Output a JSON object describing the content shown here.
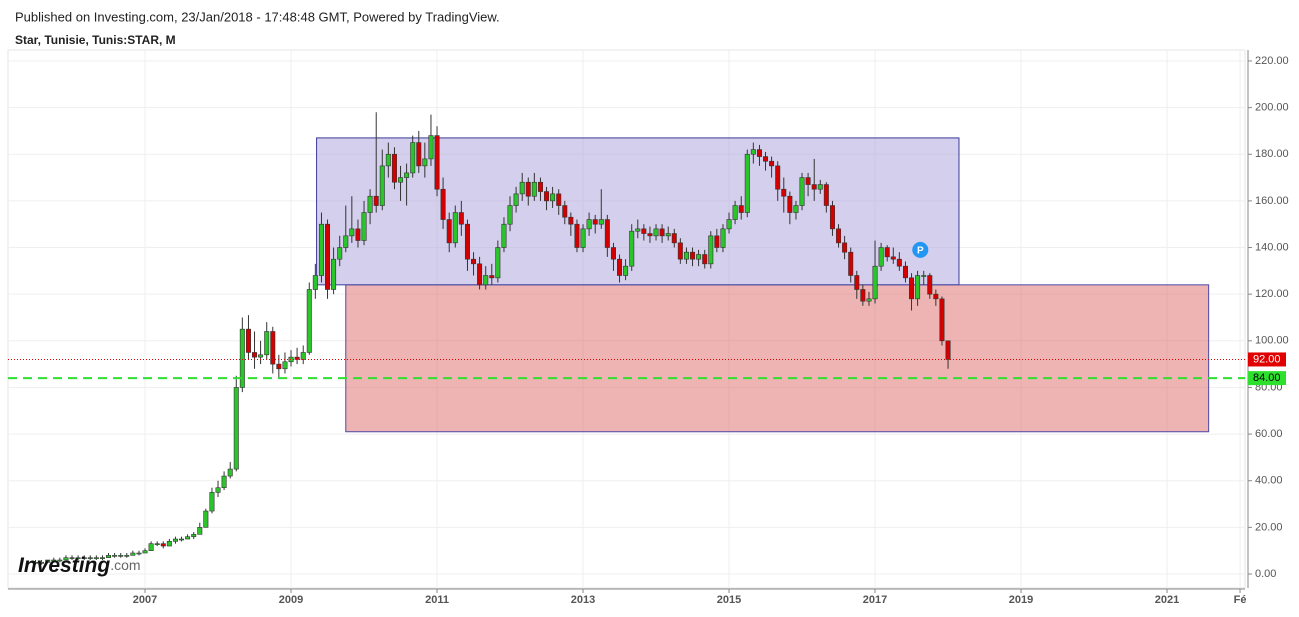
{
  "header": {
    "published": "Published on Investing.com, 23/Jan/2018 - 17:48:48 GMT, Powered by TradingView.",
    "symbol": "Star, Tunisie, Tunis:STAR, M"
  },
  "logo": {
    "brand": "Investing",
    "suffix": ".com"
  },
  "chart_data": {
    "type": "candlestick",
    "xlim": [
      2005.123,
      2022.068
    ],
    "ylim": [
      -6,
      224.7
    ],
    "xticks": [
      2007,
      2009,
      2011,
      2013,
      2015,
      2017,
      2019,
      2021,
      {
        "value": 2022,
        "label": "Fé"
      }
    ],
    "yticks": [
      {
        "value": 0,
        "label": "0.00"
      },
      {
        "value": 20,
        "label": "20.00"
      },
      {
        "value": 40,
        "label": "40.00"
      },
      {
        "value": 60,
        "label": "60.00"
      },
      {
        "value": 80,
        "label": "80.00"
      },
      {
        "value": 100,
        "label": "100.00"
      },
      {
        "value": 120,
        "label": "120.00"
      },
      {
        "value": 140,
        "label": "140.00"
      },
      {
        "value": 160,
        "label": "160.00"
      },
      {
        "value": 180,
        "label": "180.00"
      },
      {
        "value": 200,
        "label": "200.00"
      },
      {
        "value": 220,
        "label": "220.00"
      }
    ],
    "grid": true,
    "series": [
      {
        "up_color": "#2bc52b",
        "down_color": "#d40000",
        "x": [
          2005.5,
          2005.583,
          2005.667,
          2005.75,
          2005.833,
          2005.917,
          2006,
          2006.083,
          2006.167,
          2006.25,
          2006.333,
          2006.417,
          2006.5,
          2006.583,
          2006.667,
          2006.75,
          2006.833,
          2006.917,
          2007,
          2007.083,
          2007.167,
          2007.25,
          2007.333,
          2007.417,
          2007.5,
          2007.583,
          2007.667,
          2007.75,
          2007.833,
          2007.917,
          2008,
          2008.083,
          2008.167,
          2008.25,
          2008.333,
          2008.417,
          2008.5,
          2008.583,
          2008.667,
          2008.75,
          2008.833,
          2008.917,
          2009,
          2009.083,
          2009.167,
          2009.25,
          2009.333,
          2009.417,
          2009.5,
          2009.583,
          2009.667,
          2009.75,
          2009.833,
          2009.917,
          2010,
          2010.083,
          2010.167,
          2010.25,
          2010.333,
          2010.417,
          2010.5,
          2010.583,
          2010.667,
          2010.75,
          2010.833,
          2010.917,
          2011,
          2011.083,
          2011.167,
          2011.25,
          2011.333,
          2011.417,
          2011.5,
          2011.583,
          2011.667,
          2011.75,
          2011.833,
          2011.917,
          2012,
          2012.083,
          2012.167,
          2012.25,
          2012.333,
          2012.417,
          2012.5,
          2012.583,
          2012.667,
          2012.75,
          2012.833,
          2012.917,
          2013,
          2013.083,
          2013.167,
          2013.25,
          2013.333,
          2013.417,
          2013.5,
          2013.583,
          2013.667,
          2013.75,
          2013.833,
          2013.917,
          2014,
          2014.083,
          2014.167,
          2014.25,
          2014.333,
          2014.417,
          2014.5,
          2014.583,
          2014.667,
          2014.75,
          2014.833,
          2014.917,
          2015,
          2015.083,
          2015.167,
          2015.25,
          2015.333,
          2015.417,
          2015.5,
          2015.583,
          2015.667,
          2015.75,
          2015.833,
          2015.917,
          2016,
          2016.083,
          2016.167,
          2016.25,
          2016.333,
          2016.417,
          2016.5,
          2016.583,
          2016.667,
          2016.75,
          2016.833,
          2016.917,
          2017,
          2017.083,
          2017.167,
          2017.25,
          2017.333,
          2017.417,
          2017.5,
          2017.583,
          2017.667,
          2017.75,
          2017.833,
          2017.917,
          2018
        ],
        "ohlc": [
          [
            5,
            6,
            4,
            5
          ],
          [
            5,
            6,
            4,
            5
          ],
          [
            5,
            6,
            5,
            6
          ],
          [
            6,
            7,
            5,
            6
          ],
          [
            6,
            7,
            5,
            6
          ],
          [
            6,
            8,
            6,
            7
          ],
          [
            7,
            8,
            6,
            7
          ],
          [
            7,
            8,
            6,
            7
          ],
          [
            7,
            8,
            6,
            7
          ],
          [
            7,
            8,
            6,
            7
          ],
          [
            7,
            8,
            6,
            7
          ],
          [
            7,
            8,
            6,
            7
          ],
          [
            7,
            9,
            7,
            8
          ],
          [
            8,
            9,
            7,
            8
          ],
          [
            8,
            9,
            7,
            8
          ],
          [
            8,
            9,
            7,
            8
          ],
          [
            8,
            10,
            8,
            9
          ],
          [
            9,
            10,
            8,
            9
          ],
          [
            9,
            11,
            9,
            10
          ],
          [
            10,
            14,
            10,
            13
          ],
          [
            13,
            14,
            12,
            13
          ],
          [
            13,
            14,
            11,
            12
          ],
          [
            12,
            15,
            12,
            14
          ],
          [
            14,
            16,
            13,
            15
          ],
          [
            15,
            16,
            14,
            15
          ],
          [
            15,
            17,
            15,
            16
          ],
          [
            16,
            18,
            15,
            17
          ],
          [
            17,
            22,
            17,
            20
          ],
          [
            20,
            28,
            20,
            27
          ],
          [
            27,
            37,
            26,
            35
          ],
          [
            35,
            40,
            33,
            37
          ],
          [
            37,
            44,
            36,
            42
          ],
          [
            42,
            48,
            41,
            45
          ],
          [
            45,
            85,
            44,
            80
          ],
          [
            80,
            110,
            78,
            105
          ],
          [
            105,
            111,
            92,
            95
          ],
          [
            95,
            104,
            88,
            93
          ],
          [
            93,
            100,
            90,
            94
          ],
          [
            94,
            108,
            92,
            104
          ],
          [
            104,
            106,
            86,
            90
          ],
          [
            90,
            94,
            84,
            88
          ],
          [
            88,
            95,
            86,
            91
          ],
          [
            91,
            96,
            89,
            93
          ],
          [
            93,
            97,
            90,
            92
          ],
          [
            92,
            98,
            90,
            95
          ],
          [
            95,
            125,
            94,
            122
          ],
          [
            122,
            133,
            118,
            128
          ],
          [
            128,
            155,
            125,
            150
          ],
          [
            150,
            152,
            118,
            122
          ],
          [
            122,
            140,
            120,
            135
          ],
          [
            135,
            145,
            132,
            140
          ],
          [
            140,
            158,
            138,
            145
          ],
          [
            145,
            162,
            142,
            148
          ],
          [
            148,
            152,
            140,
            143
          ],
          [
            143,
            160,
            141,
            155
          ],
          [
            155,
            165,
            150,
            162
          ],
          [
            162,
            198,
            155,
            158
          ],
          [
            158,
            182,
            156,
            175
          ],
          [
            175,
            185,
            170,
            180
          ],
          [
            180,
            183,
            165,
            168
          ],
          [
            168,
            175,
            160,
            170
          ],
          [
            170,
            176,
            158,
            172
          ],
          [
            172,
            188,
            170,
            185
          ],
          [
            185,
            190,
            172,
            175
          ],
          [
            175,
            185,
            170,
            178
          ],
          [
            178,
            197,
            175,
            188
          ],
          [
            188,
            192,
            162,
            165
          ],
          [
            165,
            170,
            148,
            152
          ],
          [
            152,
            155,
            138,
            142
          ],
          [
            142,
            158,
            140,
            155
          ],
          [
            155,
            160,
            145,
            150
          ],
          [
            150,
            152,
            130,
            135
          ],
          [
            135,
            138,
            128,
            133
          ],
          [
            133,
            136,
            122,
            124
          ],
          [
            124,
            132,
            122,
            128
          ],
          [
            128,
            133,
            124,
            127
          ],
          [
            127,
            143,
            125,
            140
          ],
          [
            140,
            153,
            138,
            150
          ],
          [
            150,
            162,
            147,
            158
          ],
          [
            158,
            166,
            155,
            163
          ],
          [
            163,
            172,
            160,
            168
          ],
          [
            168,
            170,
            158,
            162
          ],
          [
            162,
            172,
            160,
            168
          ],
          [
            168,
            170,
            160,
            164
          ],
          [
            164,
            166,
            156,
            160
          ],
          [
            160,
            166,
            157,
            163
          ],
          [
            163,
            165,
            154,
            158
          ],
          [
            158,
            160,
            150,
            153
          ],
          [
            153,
            155,
            145,
            150
          ],
          [
            150,
            152,
            138,
            140
          ],
          [
            140,
            150,
            138,
            148
          ],
          [
            148,
            155,
            145,
            152
          ],
          [
            152,
            154,
            146,
            150
          ],
          [
            150,
            165,
            148,
            152
          ],
          [
            152,
            154,
            136,
            140
          ],
          [
            140,
            142,
            130,
            135
          ],
          [
            135,
            137,
            125,
            128
          ],
          [
            128,
            135,
            126,
            132
          ],
          [
            132,
            150,
            130,
            147
          ],
          [
            147,
            152,
            144,
            148
          ],
          [
            148,
            150,
            143,
            146
          ],
          [
            146,
            149,
            142,
            145
          ],
          [
            145,
            150,
            143,
            148
          ],
          [
            148,
            150,
            142,
            145
          ],
          [
            145,
            149,
            143,
            146
          ],
          [
            146,
            148,
            140,
            142
          ],
          [
            142,
            144,
            133,
            135
          ],
          [
            135,
            140,
            133,
            138
          ],
          [
            138,
            140,
            132,
            135
          ],
          [
            135,
            139,
            132,
            137
          ],
          [
            137,
            139,
            131,
            133
          ],
          [
            133,
            147,
            131,
            145
          ],
          [
            145,
            148,
            138,
            140
          ],
          [
            140,
            150,
            138,
            148
          ],
          [
            148,
            155,
            146,
            152
          ],
          [
            152,
            160,
            150,
            158
          ],
          [
            158,
            162,
            152,
            155
          ],
          [
            155,
            182,
            153,
            180
          ],
          [
            180,
            185,
            176,
            182
          ],
          [
            182,
            184,
            175,
            179
          ],
          [
            179,
            181,
            173,
            177
          ],
          [
            177,
            179,
            170,
            175
          ],
          [
            175,
            177,
            160,
            165
          ],
          [
            165,
            170,
            155,
            162
          ],
          [
            162,
            164,
            150,
            155
          ],
          [
            155,
            160,
            152,
            158
          ],
          [
            158,
            172,
            156,
            170
          ],
          [
            170,
            172,
            162,
            167
          ],
          [
            167,
            178,
            160,
            165
          ],
          [
            165,
            169,
            163,
            167
          ],
          [
            167,
            168,
            155,
            158
          ],
          [
            158,
            160,
            145,
            148
          ],
          [
            148,
            150,
            140,
            142
          ],
          [
            142,
            145,
            135,
            138
          ],
          [
            138,
            140,
            125,
            128
          ],
          [
            128,
            130,
            118,
            122
          ],
          [
            122,
            124,
            115,
            117
          ],
          [
            117,
            121,
            115,
            118
          ],
          [
            118,
            143,
            116,
            132
          ],
          [
            132,
            142,
            130,
            140
          ],
          [
            140,
            141,
            134,
            136
          ],
          [
            136,
            140,
            133,
            135
          ],
          [
            135,
            138,
            130,
            132
          ],
          [
            132,
            134,
            125,
            127
          ],
          [
            127,
            129,
            113,
            118
          ],
          [
            118,
            130,
            115,
            128
          ],
          [
            128,
            130,
            124,
            128
          ],
          [
            128,
            129,
            118,
            120
          ],
          [
            120,
            122,
            115,
            118
          ],
          [
            118,
            119,
            98,
            100
          ],
          [
            100,
            100,
            88,
            92
          ]
        ]
      }
    ],
    "zones": [
      {
        "x": [
          2009.35,
          2018.15
        ],
        "y": [
          124,
          187
        ],
        "color": "rgba(176,168,220,0.55)",
        "stroke": "#3b3b9a"
      },
      {
        "x": [
          2009.75,
          2021.57
        ],
        "y": [
          61,
          124
        ],
        "color": "rgba(222,112,112,0.52)",
        "stroke": "#4a4aa6"
      }
    ],
    "levels": [
      {
        "value": 92,
        "label": "92.00",
        "color": "#e00000",
        "style": "dotted"
      },
      {
        "value": 84,
        "label": "84.00",
        "color": "#2ee02e",
        "style": "dashed"
      }
    ],
    "annotations": [
      {
        "text": "P",
        "x": 2017.62,
        "y": 139,
        "color": "#2196f3"
      }
    ]
  }
}
